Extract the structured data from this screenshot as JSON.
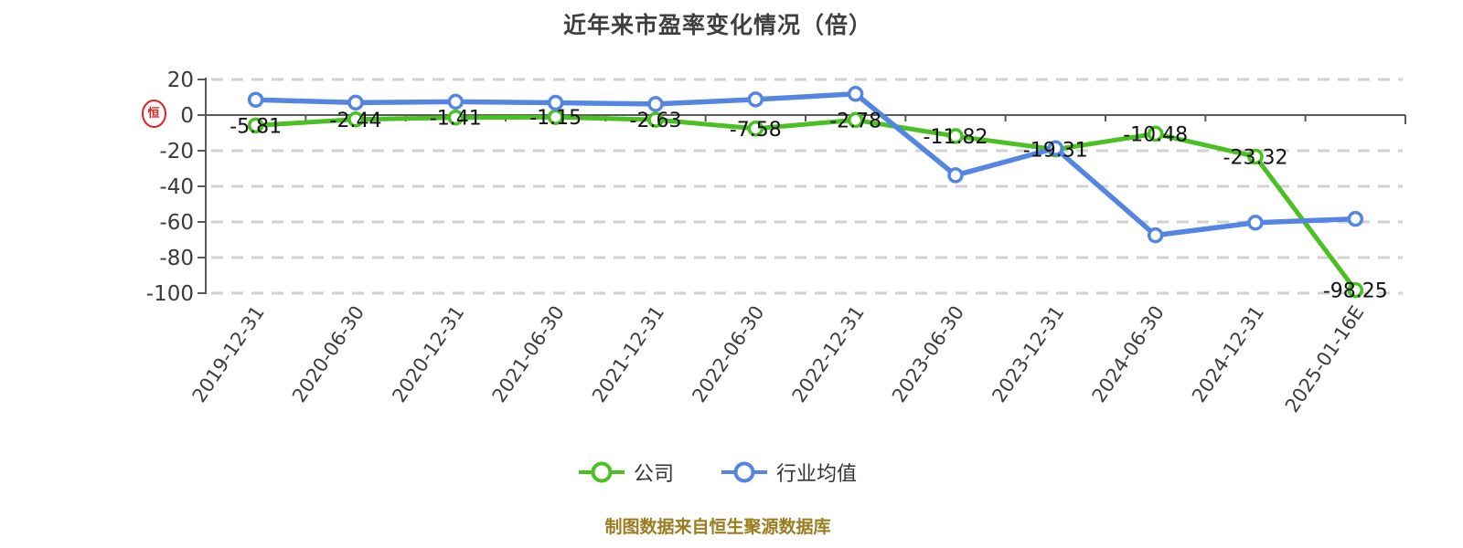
{
  "title": "近年来市盈率变化情况（倍）",
  "watermark": {
    "icon": "hengsheng-seal-icon",
    "char": "恒"
  },
  "footer": {
    "text": "制图数据来自恒生聚源数据库"
  },
  "colors": {
    "company": "#4bc022",
    "industry": "#5585e2",
    "grid": "#d2d2d2",
    "axis": "#595959",
    "data_label": "#121212",
    "tick_label": "#3a3a3a",
    "footer_text": "#9c7c1f",
    "seal_red": "#e02420"
  },
  "chart_data": {
    "type": "line",
    "title": "近年来市盈率变化情况（倍）",
    "xlabel": "",
    "ylabel": "",
    "ylim": [
      -100,
      20
    ],
    "yticks": [
      20,
      0,
      -20,
      -40,
      -60,
      -80,
      -100
    ],
    "grid": "horizontal-dashed",
    "legend_position": "bottom",
    "categories": [
      "2019-12-31",
      "2020-06-30",
      "2020-12-31",
      "2021-06-30",
      "2021-12-31",
      "2022-06-30",
      "2022-12-31",
      "2023-06-30",
      "2023-12-31",
      "2024-06-30",
      "2024-12-31",
      "2025-01-16E"
    ],
    "series": [
      {
        "name": "公司",
        "color": "#4bc022",
        "labeled": true,
        "values": [
          -5.81,
          -2.44,
          -1.41,
          -1.15,
          -2.63,
          -7.58,
          -2.78,
          -11.82,
          -19.31,
          -10.48,
          -23.32,
          -98.25
        ]
      },
      {
        "name": "行业均值",
        "color": "#5585e2",
        "labeled": false,
        "values": [
          8.6,
          7.0,
          7.5,
          6.9,
          6.2,
          8.8,
          11.9,
          -33.8,
          -18.6,
          -67.5,
          -60.4,
          -58.3
        ]
      }
    ]
  }
}
